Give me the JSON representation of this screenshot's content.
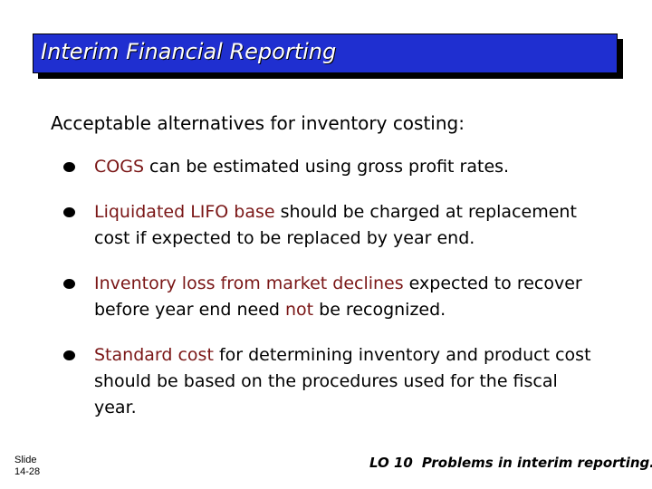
{
  "slide": {
    "title": "Interim Financial Reporting",
    "intro": "Acceptable alternatives for inventory costing:",
    "bullets": [
      {
        "lead": "COGS",
        "rest": " can be estimated using gross profit rates."
      },
      {
        "lead": "Liquidated LIFO base",
        "rest": " should be charged at replacement cost if expected to be replaced by year end."
      },
      {
        "lead": "Inventory loss from market declines",
        "rest_a": " expected to recover before year end need ",
        "emph": "not",
        "rest_b": " be recognized."
      },
      {
        "lead": "Standard cost",
        "rest": " for determining inventory and product cost should be based on the procedures used for the fiscal year."
      }
    ],
    "footer": {
      "slide_label": "Slide",
      "slide_number": "14-28",
      "lo_label": "LO 10",
      "lo_description": "Problems in interim reporting."
    }
  },
  "colors": {
    "title_bar": "#1f2fd0",
    "emphasis": "#7a1616"
  }
}
